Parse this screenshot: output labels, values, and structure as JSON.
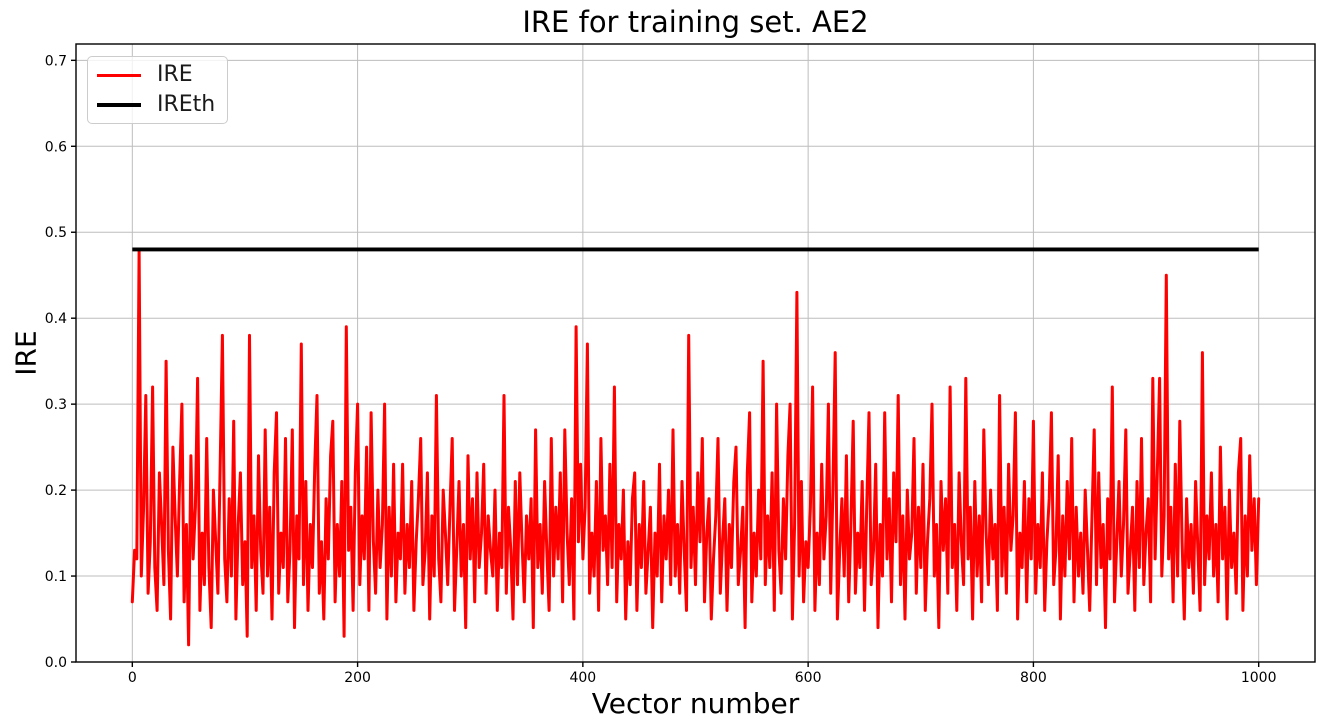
{
  "figure": {
    "title": "IRE for training set. AE2",
    "xlabel": "Vector number",
    "ylabel": "IRE"
  },
  "legend": {
    "location": "upper-left",
    "entries": [
      {
        "label": "IRE",
        "color": "#ff0000"
      },
      {
        "label": "IREth",
        "color": "#000000"
      }
    ]
  },
  "chart_data": {
    "type": "line",
    "title": "IRE for training set. AE2",
    "xlabel": "Vector number",
    "ylabel": "IRE",
    "xlim": [
      -50,
      1050
    ],
    "ylim": [
      0,
      0.719
    ],
    "xticks": [
      0,
      200,
      400,
      600,
      800,
      1000
    ],
    "yticks": [
      0.0,
      0.1,
      0.2,
      0.3,
      0.4,
      0.5,
      0.6,
      0.7
    ],
    "grid": true,
    "grid_color": "#bdbdbd",
    "background": "#ffffff",
    "legend_position": "upper-left",
    "series": [
      {
        "name": "IRE",
        "type": "line",
        "color": "#ff0000",
        "line_width": 3,
        "x_start": 0,
        "x_step": 2,
        "values": [
          0.07,
          0.13,
          0.12,
          0.48,
          0.1,
          0.18,
          0.31,
          0.08,
          0.14,
          0.32,
          0.11,
          0.06,
          0.22,
          0.16,
          0.09,
          0.35,
          0.13,
          0.05,
          0.25,
          0.17,
          0.1,
          0.21,
          0.3,
          0.07,
          0.16,
          0.02,
          0.24,
          0.12,
          0.18,
          0.33,
          0.06,
          0.15,
          0.09,
          0.26,
          0.11,
          0.04,
          0.2,
          0.14,
          0.08,
          0.23,
          0.38,
          0.12,
          0.07,
          0.19,
          0.1,
          0.28,
          0.05,
          0.16,
          0.22,
          0.09,
          0.14,
          0.03,
          0.38,
          0.11,
          0.17,
          0.06,
          0.24,
          0.13,
          0.08,
          0.27,
          0.1,
          0.18,
          0.05,
          0.22,
          0.29,
          0.08,
          0.15,
          0.11,
          0.26,
          0.07,
          0.13,
          0.27,
          0.04,
          0.17,
          0.12,
          0.37,
          0.09,
          0.21,
          0.06,
          0.16,
          0.11,
          0.23,
          0.31,
          0.08,
          0.14,
          0.05,
          0.19,
          0.12,
          0.24,
          0.28,
          0.07,
          0.16,
          0.1,
          0.21,
          0.03,
          0.39,
          0.13,
          0.18,
          0.06,
          0.22,
          0.3,
          0.09,
          0.17,
          0.12,
          0.25,
          0.06,
          0.29,
          0.14,
          0.08,
          0.2,
          0.11,
          0.16,
          0.3,
          0.05,
          0.18,
          0.1,
          0.23,
          0.07,
          0.15,
          0.12,
          0.23,
          0.08,
          0.16,
          0.11,
          0.21,
          0.06,
          0.14,
          0.19,
          0.26,
          0.09,
          0.13,
          0.22,
          0.05,
          0.17,
          0.1,
          0.31,
          0.12,
          0.07,
          0.2,
          0.15,
          0.09,
          0.18,
          0.26,
          0.06,
          0.13,
          0.21,
          0.1,
          0.16,
          0.04,
          0.24,
          0.12,
          0.19,
          0.07,
          0.22,
          0.11,
          0.15,
          0.23,
          0.08,
          0.17,
          0.13,
          0.1,
          0.2,
          0.06,
          0.15,
          0.11,
          0.31,
          0.08,
          0.18,
          0.13,
          0.05,
          0.21,
          0.09,
          0.22,
          0.14,
          0.07,
          0.17,
          0.12,
          0.19,
          0.04,
          0.27,
          0.11,
          0.16,
          0.08,
          0.21,
          0.13,
          0.06,
          0.26,
          0.1,
          0.18,
          0.12,
          0.22,
          0.07,
          0.27,
          0.15,
          0.09,
          0.19,
          0.05,
          0.39,
          0.14,
          0.23,
          0.12,
          0.18,
          0.37,
          0.08,
          0.15,
          0.1,
          0.21,
          0.06,
          0.26,
          0.13,
          0.17,
          0.09,
          0.23,
          0.11,
          0.32,
          0.07,
          0.16,
          0.12,
          0.2,
          0.05,
          0.14,
          0.09,
          0.19,
          0.22,
          0.06,
          0.16,
          0.11,
          0.21,
          0.08,
          0.13,
          0.18,
          0.04,
          0.15,
          0.1,
          0.23,
          0.07,
          0.17,
          0.12,
          0.2,
          0.09,
          0.27,
          0.1,
          0.16,
          0.08,
          0.21,
          0.13,
          0.06,
          0.38,
          0.11,
          0.18,
          0.09,
          0.22,
          0.14,
          0.26,
          0.07,
          0.15,
          0.19,
          0.05,
          0.12,
          0.17,
          0.26,
          0.08,
          0.14,
          0.19,
          0.06,
          0.16,
          0.11,
          0.21,
          0.25,
          0.09,
          0.13,
          0.18,
          0.04,
          0.22,
          0.29,
          0.07,
          0.15,
          0.1,
          0.2,
          0.12,
          0.35,
          0.09,
          0.17,
          0.11,
          0.22,
          0.06,
          0.3,
          0.13,
          0.08,
          0.19,
          0.12,
          0.24,
          0.3,
          0.05,
          0.16,
          0.43,
          0.1,
          0.21,
          0.07,
          0.14,
          0.11,
          0.18,
          0.32,
          0.06,
          0.15,
          0.09,
          0.23,
          0.12,
          0.17,
          0.3,
          0.08,
          0.2,
          0.36,
          0.05,
          0.13,
          0.19,
          0.1,
          0.24,
          0.07,
          0.16,
          0.28,
          0.08,
          0.15,
          0.11,
          0.21,
          0.06,
          0.18,
          0.29,
          0.09,
          0.13,
          0.23,
          0.04,
          0.16,
          0.1,
          0.29,
          0.12,
          0.19,
          0.07,
          0.22,
          0.14,
          0.31,
          0.09,
          0.17,
          0.05,
          0.2,
          0.12,
          0.15,
          0.26,
          0.08,
          0.18,
          0.11,
          0.23,
          0.06,
          0.14,
          0.19,
          0.3,
          0.1,
          0.16,
          0.04,
          0.21,
          0.13,
          0.19,
          0.08,
          0.32,
          0.11,
          0.16,
          0.06,
          0.22,
          0.14,
          0.09,
          0.33,
          0.12,
          0.18,
          0.05,
          0.21,
          0.1,
          0.17,
          0.07,
          0.27,
          0.15,
          0.09,
          0.2,
          0.12,
          0.16,
          0.06,
          0.31,
          0.1,
          0.18,
          0.08,
          0.23,
          0.13,
          0.17,
          0.29,
          0.05,
          0.15,
          0.11,
          0.21,
          0.07,
          0.19,
          0.12,
          0.28,
          0.08,
          0.16,
          0.11,
          0.22,
          0.06,
          0.14,
          0.19,
          0.29,
          0.09,
          0.13,
          0.24,
          0.05,
          0.17,
          0.1,
          0.21,
          0.12,
          0.26,
          0.07,
          0.18,
          0.1,
          0.15,
          0.08,
          0.2,
          0.13,
          0.06,
          0.17,
          0.27,
          0.09,
          0.22,
          0.11,
          0.16,
          0.04,
          0.19,
          0.12,
          0.32,
          0.07,
          0.14,
          0.21,
          0.1,
          0.16,
          0.27,
          0.08,
          0.13,
          0.18,
          0.06,
          0.21,
          0.11,
          0.26,
          0.09,
          0.15,
          0.19,
          0.07,
          0.33,
          0.12,
          0.22,
          0.33,
          0.1,
          0.17,
          0.45,
          0.12,
          0.18,
          0.07,
          0.23,
          0.1,
          0.28,
          0.14,
          0.05,
          0.19,
          0.11,
          0.16,
          0.08,
          0.21,
          0.13,
          0.06,
          0.36,
          0.09,
          0.17,
          0.12,
          0.22,
          0.1,
          0.16,
          0.07,
          0.25,
          0.12,
          0.18,
          0.05,
          0.2,
          0.11,
          0.15,
          0.08,
          0.22,
          0.26,
          0.06,
          0.17,
          0.1,
          0.24,
          0.13,
          0.19,
          0.09,
          0.19
        ]
      },
      {
        "name": "IREth",
        "type": "hline",
        "color": "#000000",
        "line_width": 3.8,
        "value": 0.48,
        "x_range": [
          0,
          1000
        ]
      }
    ]
  }
}
